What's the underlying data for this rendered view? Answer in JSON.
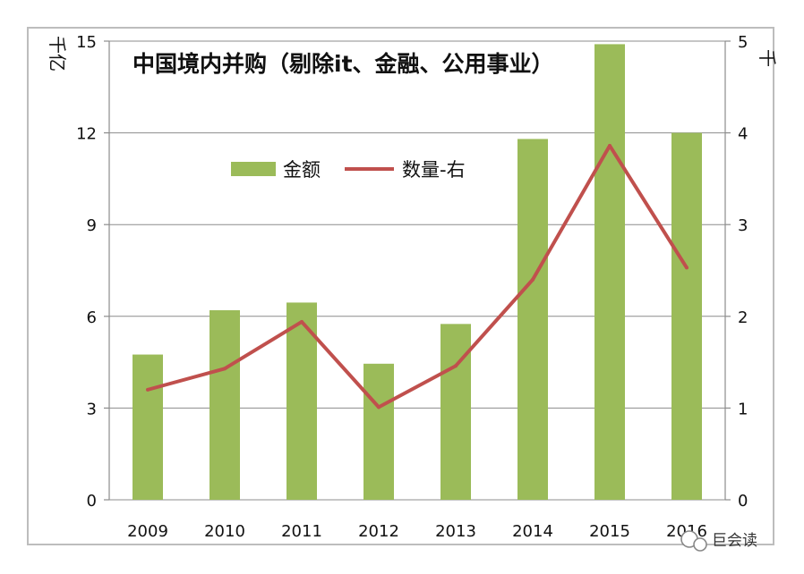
{
  "chart_data": {
    "type": "bar",
    "title": "中国境内并购（剔除it、金融、公用事业）",
    "categories": [
      "2009",
      "2010",
      "2011",
      "2012",
      "2013",
      "2014",
      "2015",
      "2016"
    ],
    "series": [
      {
        "name": "金额",
        "kind": "bar",
        "axis": "left",
        "color": "#9bbb59",
        "values": [
          4.75,
          6.2,
          6.45,
          4.45,
          5.75,
          11.8,
          14.9,
          12.0
        ]
      },
      {
        "name": "数量-右",
        "kind": "line",
        "axis": "right",
        "color": "#c0504d",
        "values": [
          1.2,
          1.43,
          1.94,
          1.01,
          1.46,
          2.4,
          3.86,
          2.53
        ]
      }
    ],
    "ylabel": "千亿",
    "y2label": "千",
    "ylim": [
      0,
      15
    ],
    "y2lim": [
      0,
      5
    ],
    "yticks": [
      "0",
      "3",
      "6",
      "9",
      "12",
      "15"
    ],
    "y2ticks": [
      "0",
      "1",
      "2",
      "3",
      "4",
      "5"
    ],
    "grid": true,
    "legend": "top-left"
  },
  "watermark": {
    "text": "巨会读"
  }
}
